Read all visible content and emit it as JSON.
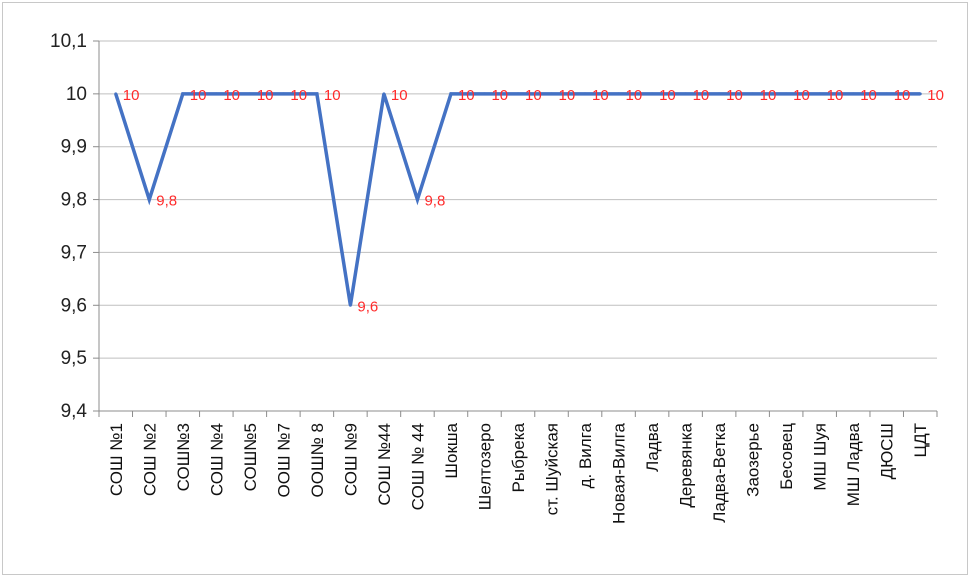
{
  "chart_data": {
    "type": "line",
    "title": "",
    "xlabel": "",
    "ylabel": "",
    "ylim": [
      9.4,
      10.1
    ],
    "yticks": [
      "9,4",
      "9,5",
      "9,6",
      "9,7",
      "9,8",
      "9,9",
      "10",
      "10,1"
    ],
    "grid": true,
    "legend": "none",
    "series_color": "#4472c4",
    "label_color": "#ff2a2a",
    "categories": [
      "СОШ №1",
      "СОШ №2",
      "СОШ№3",
      "СОШ №4",
      "СОШ№5",
      "ООШ №7",
      "ООШ№ 8",
      "СОШ №9",
      "СОШ №44",
      "СОШ № 44",
      "Шокша",
      "Шелтозеро",
      "Рыбрека",
      "ст. Шуйская",
      "д. Вилга",
      "Новая-Вилга",
      "Ладва",
      "Деревянка",
      "Ладва-Ветка",
      "Заозерье",
      "Бесовец",
      "МШ Шуя",
      "МШ Ладва",
      "ДЮСШ",
      "ЦДТ"
    ],
    "series": [
      {
        "values": [
          10,
          9.8,
          10,
          10,
          10,
          10,
          10,
          9.6,
          10,
          9.8,
          10,
          10,
          10,
          10,
          10,
          10,
          10,
          10,
          10,
          10,
          10,
          10,
          10,
          10,
          10
        ],
        "labels": [
          "10",
          "9,8",
          "10",
          "10",
          "10",
          "10",
          "10",
          "9,6",
          "10",
          "9,8",
          "10",
          "10",
          "10",
          "10",
          "10",
          "10",
          "10",
          "10",
          "10",
          "10",
          "10",
          "10",
          "10",
          "10",
          "10"
        ]
      }
    ]
  }
}
